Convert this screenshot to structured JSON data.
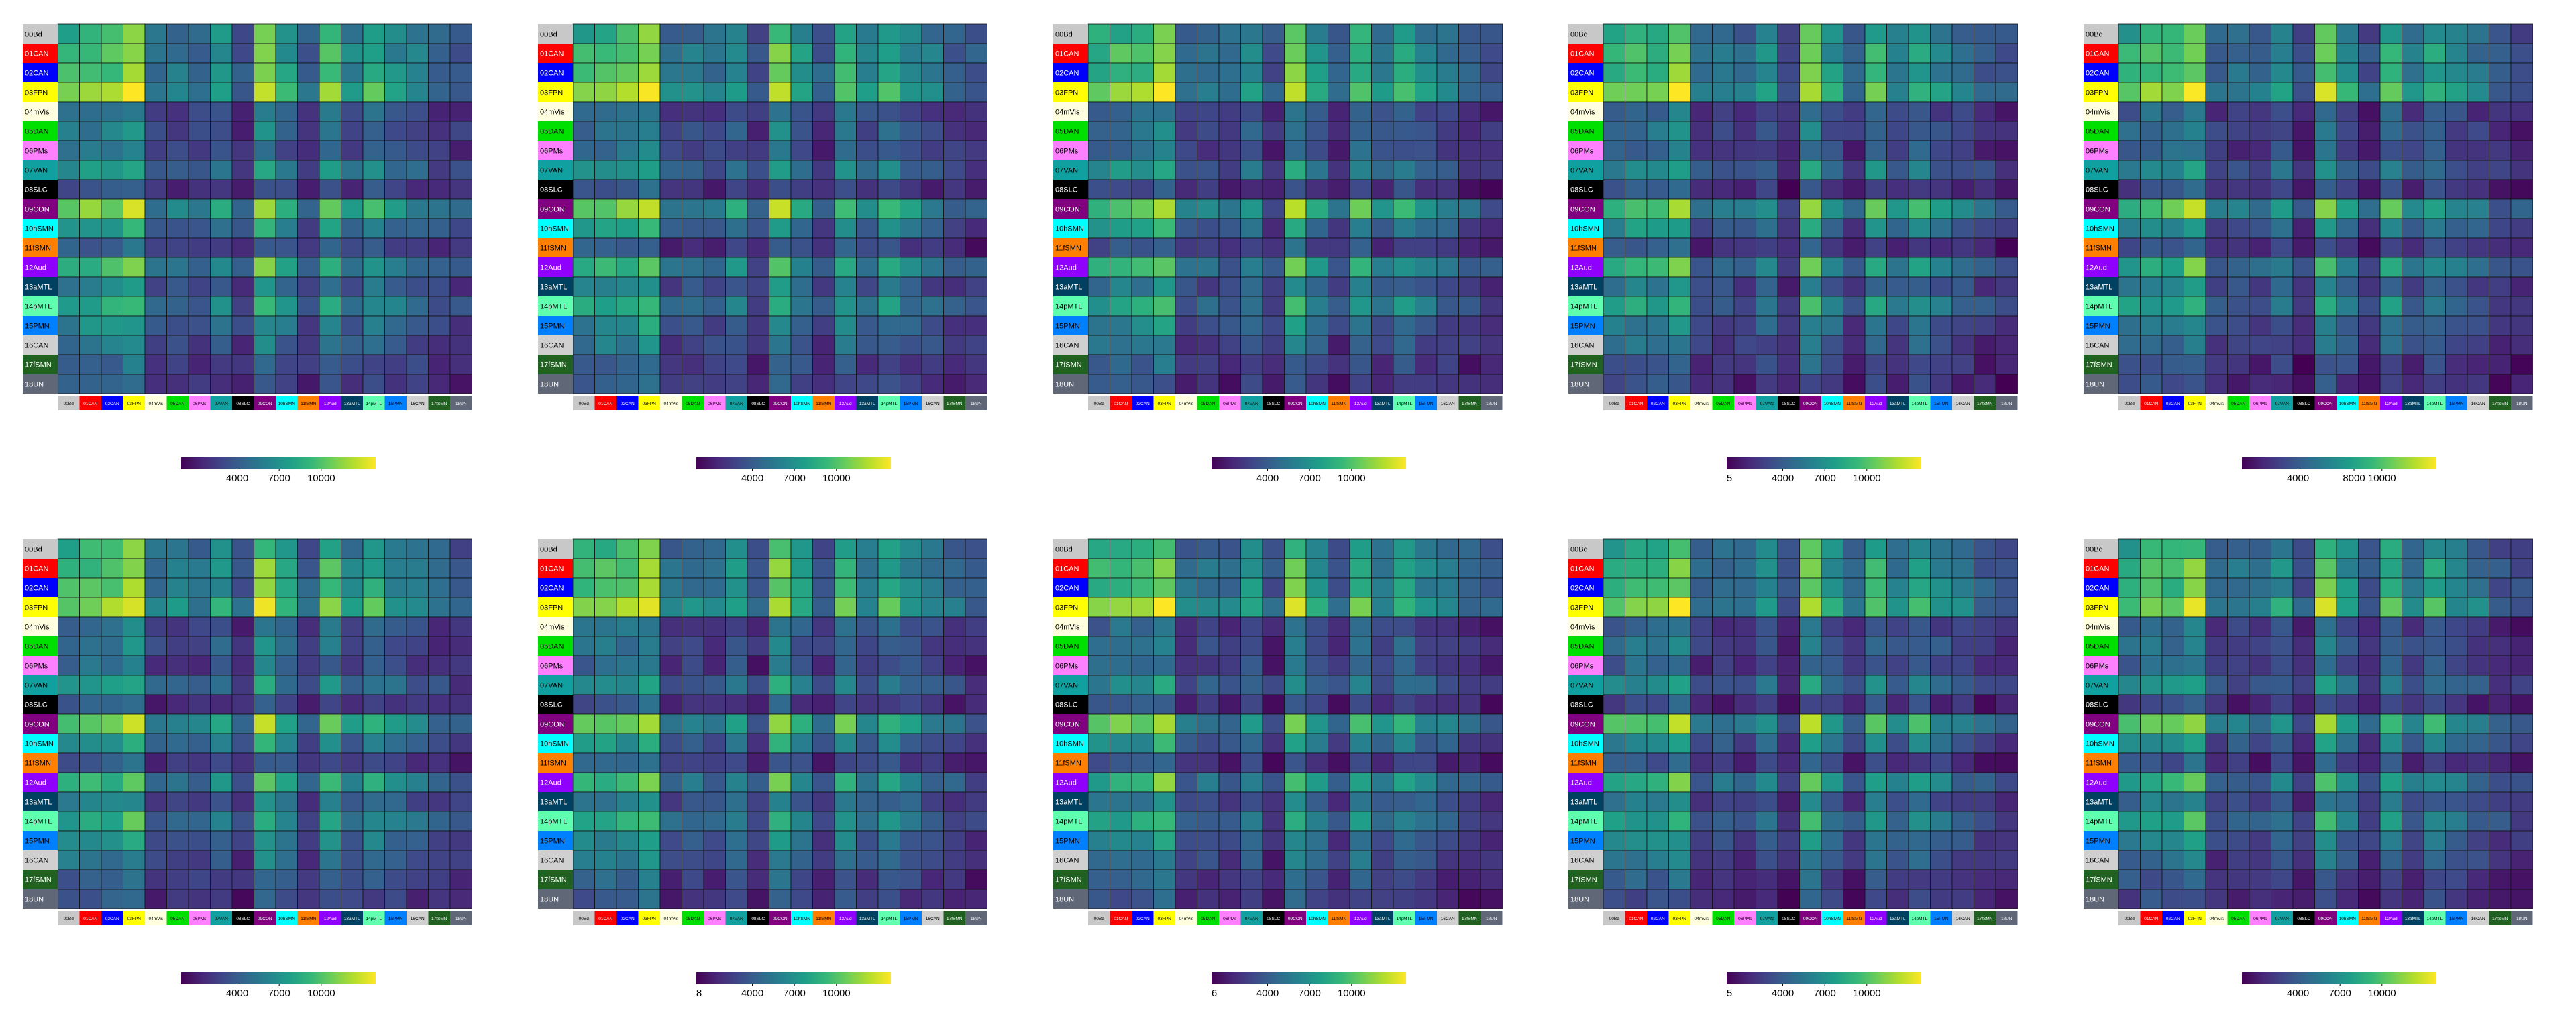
{
  "figure": {
    "panel_count": 10,
    "grid": "2 rows x 5 columns",
    "colormap": "viridis",
    "tick_labels": [
      "00Bd",
      "01CAN",
      "02CAN",
      "03FPN",
      "04mVis",
      "05DAN",
      "06PMs",
      "07VAN",
      "08SLC",
      "09CON",
      "10hSMN",
      "11fSMN",
      "12Aud",
      "13aMTL",
      "14pMTL",
      "15PMN",
      "16CAN",
      "17fSMN",
      "18UN"
    ],
    "label_colors": [
      "#c8c8c8",
      "#ff0000",
      "#0000ff",
      "#ffff00",
      "#ffffe0",
      "#00e000",
      "#ff80ff",
      "#10a0a0",
      "#000000",
      "#800080",
      "#00ffff",
      "#ff8000",
      "#9000ff",
      "#004060",
      "#60ffb0",
      "#0080ff",
      "#d0d0d0",
      "#206020",
      "#606878"
    ],
    "label_text_colors": [
      "#000",
      "#fff",
      "#fff",
      "#000",
      "#000",
      "#000",
      "#000",
      "#000",
      "#fff",
      "#fff",
      "#000",
      "#000",
      "#fff",
      "#fff",
      "#000",
      "#000",
      "#000",
      "#fff",
      "#fff"
    ]
  },
  "chart_data": [
    {
      "type": "heatmap",
      "index": 0,
      "scale_max": 10000,
      "colorbar_ticks": [
        {
          "value": 4000,
          "label": "4000"
        },
        {
          "value": 7000,
          "label": "7000"
        },
        {
          "value": 10000,
          "label": "10000"
        }
      ],
      "colorbar_min_label": ""
    },
    {
      "type": "heatmap",
      "index": 1,
      "scale_max": 10000,
      "colorbar_ticks": [
        {
          "value": 4000,
          "label": "4000"
        },
        {
          "value": 7000,
          "label": "7000"
        },
        {
          "value": 10000,
          "label": "10000"
        }
      ],
      "colorbar_min_label": ""
    },
    {
      "type": "heatmap",
      "index": 2,
      "scale_max": 10000,
      "colorbar_ticks": [
        {
          "value": 4000,
          "label": "4000"
        },
        {
          "value": 7000,
          "label": "7000"
        },
        {
          "value": 10000,
          "label": "10000"
        }
      ],
      "colorbar_min_label": ""
    },
    {
      "type": "heatmap",
      "index": 3,
      "scale_max": 10000,
      "colorbar_ticks": [
        {
          "value": 4000,
          "label": "4000"
        },
        {
          "value": 7000,
          "label": "7000"
        },
        {
          "value": 10000,
          "label": "10000"
        }
      ],
      "colorbar_min_label": "5"
    },
    {
      "type": "heatmap",
      "index": 4,
      "scale_max": 10000,
      "colorbar_ticks": [
        {
          "value": 4000,
          "label": "4000"
        },
        {
          "value": 8000,
          "label": "8000"
        },
        {
          "value": 10000,
          "label": "10000"
        }
      ],
      "colorbar_min_label": ""
    },
    {
      "type": "heatmap",
      "index": 5,
      "scale_max": 10000,
      "colorbar_ticks": [
        {
          "value": 4000,
          "label": "4000"
        },
        {
          "value": 7000,
          "label": "7000"
        },
        {
          "value": 10000,
          "label": "10000"
        }
      ],
      "colorbar_min_label": ""
    },
    {
      "type": "heatmap",
      "index": 6,
      "scale_max": 10000,
      "colorbar_ticks": [
        {
          "value": 4000,
          "label": "4000"
        },
        {
          "value": 7000,
          "label": "7000"
        },
        {
          "value": 10000,
          "label": "10000"
        }
      ],
      "colorbar_min_label": "8"
    },
    {
      "type": "heatmap",
      "index": 7,
      "scale_max": 10000,
      "colorbar_ticks": [
        {
          "value": 4000,
          "label": "4000"
        },
        {
          "value": 7000,
          "label": "7000"
        },
        {
          "value": 10000,
          "label": "10000"
        }
      ],
      "colorbar_min_label": "6"
    },
    {
      "type": "heatmap",
      "index": 8,
      "scale_max": 10000,
      "colorbar_ticks": [
        {
          "value": 4000,
          "label": "4000"
        },
        {
          "value": 7000,
          "label": "7000"
        },
        {
          "value": 10000,
          "label": "10000"
        }
      ],
      "colorbar_min_label": "5"
    },
    {
      "type": "heatmap",
      "index": 9,
      "scale_max": 10000,
      "colorbar_ticks": [
        {
          "value": 4000,
          "label": "4000"
        },
        {
          "value": 7000,
          "label": "7000"
        },
        {
          "value": 10000,
          "label": "10000"
        }
      ],
      "colorbar_min_label": ""
    }
  ]
}
